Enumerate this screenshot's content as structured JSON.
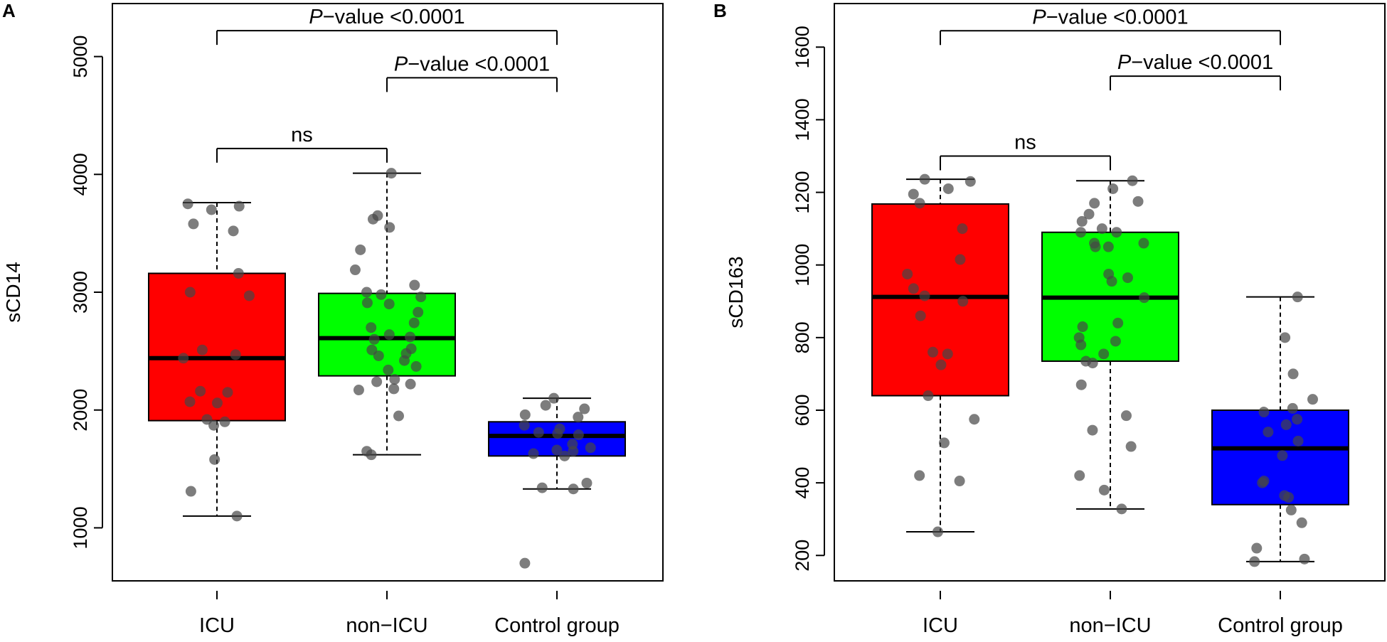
{
  "chart_data": [
    {
      "type": "boxplot",
      "panel_label": "A",
      "ylabel": "sCD14",
      "xlabel": "",
      "ylim": [
        550,
        5450
      ],
      "yticks": [
        1000,
        2000,
        3000,
        4000,
        5000
      ],
      "yticklabels": [
        "1000",
        "2000",
        "3000",
        "4000",
        "5000"
      ],
      "categories": [
        "ICU",
        "non−ICU",
        "Control group"
      ],
      "groups": [
        {
          "name": "ICU",
          "color": "#ff0000",
          "whisker_low": 1100,
          "q1": 1910,
          "median": 2440,
          "q3": 3160,
          "whisker_high": 3760,
          "points": [
            3520,
            3750,
            3700,
            3730,
            3580,
            3160,
            3000,
            2970,
            2510,
            2470,
            2440,
            2160,
            2150,
            2060,
            2070,
            1920,
            1900,
            1870,
            1580,
            1310,
            1100
          ]
        },
        {
          "name": "non−ICU",
          "color": "#00ff00",
          "whisker_low": 1620,
          "q1": 2290,
          "median": 2610,
          "q3": 2990,
          "whisker_high": 4010,
          "points": [
            4010,
            3650,
            3620,
            3550,
            3360,
            3190,
            3060,
            3000,
            2980,
            2960,
            2910,
            2900,
            2830,
            2740,
            2700,
            2640,
            2620,
            2600,
            2520,
            2510,
            2480,
            2460,
            2420,
            2370,
            2340,
            2260,
            2240,
            2220,
            2180,
            2170,
            1950,
            1650,
            1620
          ]
        },
        {
          "name": "Control group",
          "color": "#0000ff",
          "whisker_low": 1330,
          "q1": 1610,
          "median": 1780,
          "q3": 1900,
          "whisker_high": 2100,
          "points": [
            2100,
            2040,
            2010,
            1960,
            1940,
            1870,
            1840,
            1810,
            1800,
            1790,
            1710,
            1680,
            1660,
            1650,
            1630,
            1610,
            1380,
            1340,
            1330,
            700
          ]
        }
      ],
      "comparisons": [
        {
          "from": 0,
          "to": 1,
          "y": 4220,
          "label_italic": "",
          "label": "ns"
        },
        {
          "from": 1,
          "to": 2,
          "y": 4820,
          "label_italic": "P",
          "label": "−value <0.0001"
        },
        {
          "from": 0,
          "to": 2,
          "y": 5220,
          "label_italic": "P",
          "label": "−value <0.0001"
        }
      ]
    },
    {
      "type": "boxplot",
      "panel_label": "B",
      "ylabel": "sCD163",
      "xlabel": "",
      "ylim": [
        130,
        1720
      ],
      "yticks": [
        200,
        400,
        600,
        800,
        1000,
        1200,
        1400,
        1600
      ],
      "yticklabels": [
        "200",
        "400",
        "600",
        "800",
        "1000",
        "1200",
        "1400",
        "1600"
      ],
      "categories": [
        "ICU",
        "non−ICU",
        "Control group"
      ],
      "groups": [
        {
          "name": "ICU",
          "color": "#ff0000",
          "whisker_low": 265,
          "q1": 640,
          "median": 912,
          "q3": 1168,
          "whisker_high": 1236,
          "points": [
            1236,
            1230,
            1210,
            1195,
            1170,
            1100,
            1015,
            975,
            935,
            915,
            900,
            860,
            760,
            755,
            725,
            640,
            575,
            510,
            420,
            405,
            265
          ]
        },
        {
          "name": "non−ICU",
          "color": "#00ff00",
          "whisker_low": 328,
          "q1": 735,
          "median": 910,
          "q3": 1090,
          "whisker_high": 1232,
          "points": [
            1232,
            1210,
            1175,
            1170,
            1140,
            1120,
            1100,
            1090,
            1090,
            1060,
            1060,
            1050,
            1050,
            975,
            965,
            955,
            910,
            840,
            830,
            800,
            790,
            780,
            755,
            735,
            730,
            670,
            585,
            545,
            500,
            420,
            380,
            328
          ]
        },
        {
          "name": "Control group",
          "color": "#0000ff",
          "whisker_low": 183,
          "q1": 340,
          "median": 495,
          "q3": 600,
          "whisker_high": 912,
          "points": [
            912,
            800,
            700,
            630,
            605,
            595,
            575,
            560,
            540,
            515,
            475,
            405,
            400,
            365,
            360,
            325,
            290,
            220,
            190,
            183
          ]
        }
      ],
      "comparisons": [
        {
          "from": 0,
          "to": 1,
          "y": 1300,
          "label_italic": "",
          "label": "ns"
        },
        {
          "from": 1,
          "to": 2,
          "y": 1520,
          "label_italic": "P",
          "label": "−value <0.0001"
        },
        {
          "from": 0,
          "to": 2,
          "y": 1645,
          "label_italic": "P",
          "label": "−value <0.0001"
        }
      ]
    }
  ]
}
